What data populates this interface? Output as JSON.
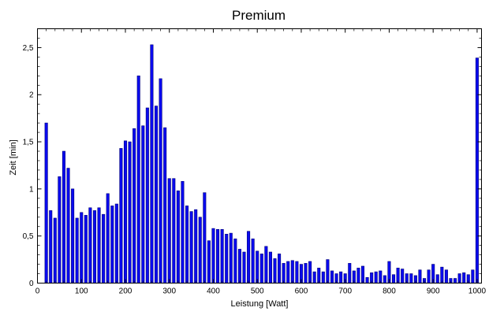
{
  "chart_data": {
    "type": "bar",
    "title": "Premium",
    "xlabel": "Leistung [Watt]",
    "ylabel": "Zeit [min]",
    "xlim": [
      0,
      1010
    ],
    "ylim": [
      0,
      2.7
    ],
    "grid": false,
    "bar_color": "#0a0af0",
    "x_ticks": [
      {
        "value": 0,
        "label": "0"
      },
      {
        "value": 100,
        "label": "100"
      },
      {
        "value": 200,
        "label": "200"
      },
      {
        "value": 300,
        "label": "300"
      },
      {
        "value": 400,
        "label": "400"
      },
      {
        "value": 500,
        "label": "500"
      },
      {
        "value": 600,
        "label": "600"
      },
      {
        "value": 700,
        "label": "700"
      },
      {
        "value": 800,
        "label": "800"
      },
      {
        "value": 900,
        "label": "900"
      },
      {
        "value": 1000,
        "label": "1000"
      }
    ],
    "y_ticks": [
      {
        "value": 0,
        "label": "0"
      },
      {
        "value": 0.5,
        "label": "0,5"
      },
      {
        "value": 1,
        "label": "1"
      },
      {
        "value": 1.5,
        "label": "1,5"
      },
      {
        "value": 2,
        "label": "2"
      },
      {
        "value": 2.5,
        "label": "2,5"
      }
    ],
    "x": [
      20,
      30,
      40,
      50,
      60,
      70,
      80,
      90,
      100,
      110,
      120,
      130,
      140,
      150,
      160,
      170,
      180,
      190,
      200,
      210,
      220,
      230,
      240,
      250,
      260,
      270,
      280,
      290,
      300,
      310,
      320,
      330,
      340,
      350,
      360,
      370,
      380,
      390,
      400,
      410,
      420,
      430,
      440,
      450,
      460,
      470,
      480,
      490,
      500,
      510,
      520,
      530,
      540,
      550,
      560,
      570,
      580,
      590,
      600,
      610,
      620,
      630,
      640,
      650,
      660,
      670,
      680,
      690,
      700,
      710,
      720,
      730,
      740,
      750,
      760,
      770,
      780,
      790,
      800,
      810,
      820,
      830,
      840,
      850,
      860,
      870,
      880,
      890,
      900,
      910,
      920,
      930,
      940,
      950,
      960,
      970,
      980,
      990,
      1000
    ],
    "values": [
      1.7,
      0.77,
      0.69,
      1.13,
      1.4,
      1.22,
      1.0,
      0.69,
      0.75,
      0.72,
      0.8,
      0.77,
      0.8,
      0.73,
      0.95,
      0.82,
      0.84,
      1.43,
      1.51,
      1.5,
      1.64,
      2.2,
      1.67,
      1.86,
      2.53,
      1.88,
      2.17,
      1.65,
      1.11,
      1.11,
      0.98,
      1.08,
      0.82,
      0.76,
      0.78,
      0.7,
      0.96,
      0.45,
      0.58,
      0.57,
      0.57,
      0.52,
      0.53,
      0.47,
      0.36,
      0.33,
      0.55,
      0.47,
      0.34,
      0.31,
      0.39,
      0.33,
      0.26,
      0.31,
      0.21,
      0.23,
      0.24,
      0.23,
      0.2,
      0.21,
      0.23,
      0.12,
      0.16,
      0.12,
      0.25,
      0.13,
      0.1,
      0.12,
      0.1,
      0.21,
      0.13,
      0.16,
      0.18,
      0.06,
      0.11,
      0.12,
      0.13,
      0.08,
      0.23,
      0.09,
      0.16,
      0.15,
      0.1,
      0.1,
      0.08,
      0.14,
      0.05,
      0.14,
      0.2,
      0.09,
      0.17,
      0.14,
      0.05,
      0.05,
      0.1,
      0.11,
      0.09,
      0.14,
      2.39
    ]
  }
}
